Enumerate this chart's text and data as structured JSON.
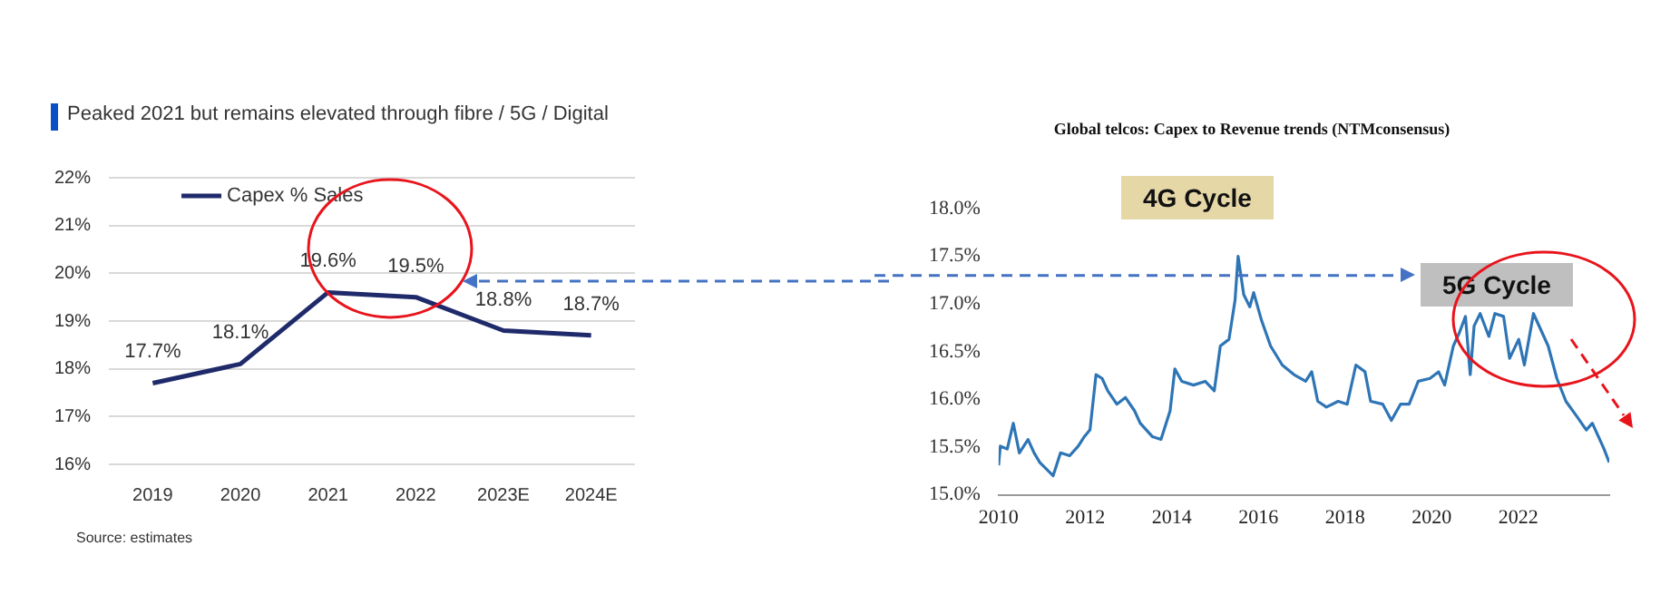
{
  "chart_data": [
    {
      "type": "line",
      "title": "Peaked 2021 but remains elevated through fibre / 5G / Digital",
      "categories": [
        "2019",
        "2020",
        "2021",
        "2022",
        "2023E",
        "2024E"
      ],
      "series": [
        {
          "name": "Capex % Sales",
          "color": "#1f2a6b",
          "values": [
            17.7,
            18.1,
            19.6,
            19.5,
            18.8,
            18.7
          ],
          "value_labels": [
            "17.7%",
            "18.1%",
            "19.6%",
            "19.5%",
            "18.8%",
            "18.7%"
          ]
        }
      ],
      "ylim": [
        16,
        22
      ],
      "yticks": [
        {
          "value": 16,
          "label": "16%"
        },
        {
          "value": 17,
          "label": "17%"
        },
        {
          "value": 18,
          "label": "18%"
        },
        {
          "value": 19,
          "label": "19%"
        },
        {
          "value": 20,
          "label": "20%"
        },
        {
          "value": 21,
          "label": "21%"
        },
        {
          "value": 22,
          "label": "22%"
        }
      ],
      "grid": "y",
      "legend": "top left",
      "annotations": [
        "Source: estimates"
      ]
    },
    {
      "type": "line",
      "title": "Global telcos: Capex to Revenue trends (NTMconsensus)",
      "x": [
        2010.0,
        2010.04,
        2010.2,
        2010.34,
        2010.48,
        2010.68,
        2010.82,
        2010.95,
        2011.26,
        2011.43,
        2011.64,
        2011.84,
        2011.98,
        2012.11,
        2012.25,
        2012.39,
        2012.52,
        2012.73,
        2012.93,
        2013.14,
        2013.27,
        2013.55,
        2013.75,
        2013.96,
        2014.07,
        2014.23,
        2014.5,
        2014.77,
        2014.98,
        2015.12,
        2015.32,
        2015.46,
        2015.53,
        2015.66,
        2015.8,
        2015.89,
        2016.07,
        2016.28,
        2016.55,
        2016.82,
        2017.09,
        2017.23,
        2017.37,
        2017.57,
        2017.84,
        2018.05,
        2018.25,
        2018.46,
        2018.59,
        2018.87,
        2019.07,
        2019.28,
        2019.48,
        2019.69,
        2019.96,
        2020.16,
        2020.3,
        2020.5,
        2020.64,
        2020.78,
        2020.89,
        2020.98,
        2021.12,
        2021.32,
        2021.46,
        2021.66,
        2021.8,
        2022.01,
        2022.14,
        2022.35,
        2022.55,
        2022.69,
        2022.89,
        2023.1,
        2023.37,
        2023.57,
        2023.71,
        2023.85,
        2023.98,
        2024.1
      ],
      "series": [
        {
          "color": "#2e75b6",
          "values": [
            15.31,
            15.51,
            15.48,
            15.75,
            15.44,
            15.58,
            15.44,
            15.34,
            15.2,
            15.44,
            15.41,
            15.51,
            15.61,
            15.68,
            16.26,
            16.22,
            16.09,
            15.95,
            16.02,
            15.88,
            15.75,
            15.61,
            15.58,
            15.88,
            16.32,
            16.19,
            16.15,
            16.19,
            16.09,
            16.56,
            16.63,
            17.04,
            17.5,
            17.1,
            16.97,
            17.12,
            16.83,
            16.56,
            16.36,
            16.26,
            16.19,
            16.29,
            15.98,
            15.92,
            15.98,
            15.95,
            16.36,
            16.29,
            15.98,
            15.95,
            15.78,
            15.95,
            15.95,
            16.19,
            16.22,
            16.29,
            16.15,
            16.56,
            16.7,
            16.87,
            16.26,
            16.77,
            16.9,
            16.66,
            16.9,
            16.87,
            16.43,
            16.63,
            16.36,
            16.9,
            16.7,
            16.56,
            16.22,
            15.98,
            15.81,
            15.68,
            15.75,
            15.61,
            15.48,
            15.34
          ]
        }
      ],
      "xlim": [
        2010,
        2024.1
      ],
      "xticks": [
        2010,
        2012,
        2014,
        2016,
        2018,
        2020,
        2022
      ],
      "ylim": [
        15,
        18
      ],
      "yticks": [
        {
          "value": 15,
          "label": "15.0%"
        },
        {
          "value": 15.5,
          "label": "15.5%"
        },
        {
          "value": 16,
          "label": "16.0%"
        },
        {
          "value": 16.5,
          "label": "16.5%"
        },
        {
          "value": 17,
          "label": "17.0%"
        },
        {
          "value": 17.5,
          "label": "17.5%"
        },
        {
          "value": 18,
          "label": "18.0%"
        }
      ],
      "ref_lines": [
        {
          "axis": "y",
          "value": 17.3,
          "color": "#4472c4",
          "line_style": "dashed"
        }
      ],
      "annotations": [
        "4G Cycle",
        "5G Cycle"
      ]
    }
  ]
}
